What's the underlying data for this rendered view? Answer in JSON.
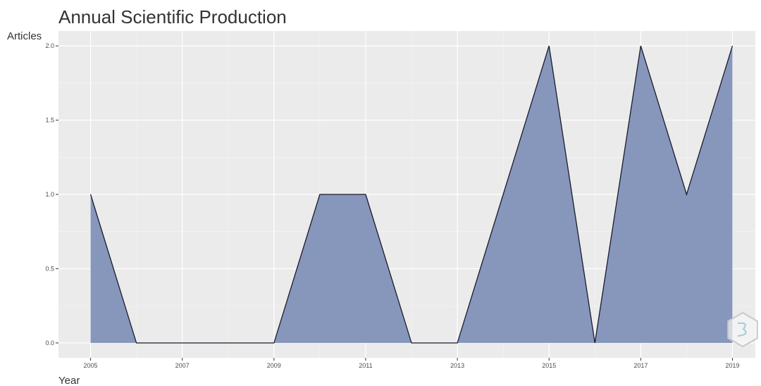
{
  "chart_data": {
    "type": "area",
    "title": "Annual Scientific Production",
    "xlabel": "Year",
    "ylabel": "Articles",
    "x": [
      2005,
      2006,
      2007,
      2008,
      2009,
      2010,
      2011,
      2012,
      2013,
      2014,
      2015,
      2016,
      2017,
      2018,
      2019
    ],
    "values": [
      1,
      0,
      0,
      0,
      0,
      1,
      1,
      0,
      0,
      1,
      2,
      0,
      2,
      1,
      2
    ],
    "x_ticks": [
      "2005",
      "2007",
      "2009",
      "2011",
      "2013",
      "2015",
      "2017",
      "2019"
    ],
    "y_ticks": [
      "0.0",
      "0.5",
      "1.0",
      "1.5",
      "2.0"
    ],
    "xlim": [
      2004.3,
      2019.5
    ],
    "ylim": [
      -0.1,
      2.1
    ],
    "grid": true,
    "legend": "none",
    "colors": {
      "fill": "#8797bb",
      "line": "#1a1a2e",
      "panel": "#ebebeb",
      "grid_major": "#ffffff",
      "grid_minor": "#f5f5f5"
    }
  },
  "watermark": {
    "icon": "bibliometrix-hexagon-logo"
  }
}
